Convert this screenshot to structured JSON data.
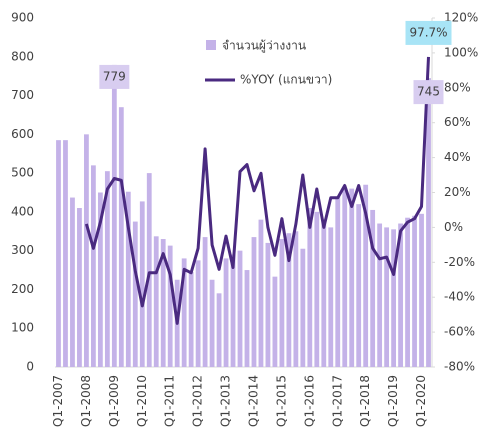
{
  "chart_data": {
    "type": "bar-line",
    "categories": [
      "Q1-2007",
      null,
      null,
      null,
      "Q1-2008",
      null,
      null,
      null,
      "Q1-2009",
      null,
      null,
      null,
      "Q1-2010",
      null,
      null,
      null,
      "Q1-2011",
      null,
      null,
      null,
      "Q1-2012",
      null,
      null,
      null,
      "Q1-2013",
      null,
      null,
      null,
      "Q1-2014",
      null,
      null,
      null,
      "Q1-2015",
      null,
      null,
      null,
      "Q1-2016",
      null,
      null,
      null,
      "Q1-2017",
      null,
      null,
      null,
      "Q1-2018",
      null,
      null,
      null,
      "Q1-2019",
      null,
      null,
      null,
      "Q1-2020",
      null
    ],
    "series": [
      {
        "name": "จำนวนผู้ว่างงาน",
        "type": "bar",
        "color": "#c4b2e8",
        "values": [
          585,
          585,
          437,
          410,
          600,
          520,
          450,
          505,
          779,
          670,
          452,
          375,
          427,
          500,
          337,
          330,
          313,
          225,
          280,
          245,
          275,
          335,
          225,
          190,
          280,
          290,
          300,
          250,
          335,
          380,
          320,
          233,
          330,
          345,
          350,
          305,
          410,
          400,
          380,
          360,
          440,
          460,
          460,
          420,
          470,
          405,
          370,
          360,
          355,
          370,
          385,
          390,
          395,
          745
        ],
        "value_labels": [
          null,
          null,
          null,
          null,
          null,
          null,
          null,
          null,
          "779",
          null,
          null,
          null,
          null,
          null,
          null,
          null,
          null,
          null,
          null,
          null,
          null,
          null,
          null,
          null,
          null,
          null,
          null,
          null,
          null,
          null,
          null,
          null,
          null,
          null,
          null,
          null,
          null,
          null,
          null,
          null,
          null,
          null,
          null,
          null,
          null,
          null,
          null,
          null,
          null,
          null,
          null,
          null,
          null,
          "745"
        ]
      },
      {
        "name": "%YOY (แกนขวา)",
        "type": "line",
        "axis": "y2",
        "color": "#4a2a80",
        "values": [
          null,
          null,
          null,
          null,
          2,
          -12,
          3,
          22,
          28,
          27,
          0,
          -25,
          -45,
          -26,
          -26,
          -15,
          -27,
          -55,
          -24,
          -26,
          -12,
          45,
          -10,
          -24,
          -5,
          -23,
          32,
          36,
          21,
          31,
          0,
          -16,
          5,
          -19,
          2,
          30,
          0,
          22,
          0,
          17,
          17,
          24,
          12,
          24,
          8,
          -12,
          -18,
          -17,
          -27,
          -2,
          3,
          5,
          12,
          97.7
        ],
        "value_labels": [
          null,
          null,
          null,
          null,
          null,
          null,
          null,
          null,
          null,
          null,
          null,
          null,
          null,
          null,
          null,
          null,
          null,
          null,
          null,
          null,
          null,
          null,
          null,
          null,
          null,
          null,
          null,
          null,
          null,
          null,
          null,
          null,
          null,
          null,
          null,
          null,
          null,
          null,
          null,
          null,
          null,
          null,
          null,
          null,
          null,
          null,
          null,
          null,
          null,
          null,
          null,
          null,
          null,
          "97.7%"
        ]
      }
    ],
    "ylim": [
      0,
      900
    ],
    "yticks": [
      0,
      100,
      200,
      300,
      400,
      500,
      600,
      700,
      800,
      900
    ],
    "y2lim": [
      -80,
      120
    ],
    "y2ticks": [
      {
        "value": -80,
        "label": "-80%"
      },
      {
        "value": -60,
        "label": "-60%"
      },
      {
        "value": -40,
        "label": "-40%"
      },
      {
        "value": -20,
        "label": "-20%"
      },
      {
        "value": 0,
        "label": "0%"
      },
      {
        "value": 20,
        "label": "20%"
      },
      {
        "value": 40,
        "label": "40%"
      },
      {
        "value": 60,
        "label": "60%"
      },
      {
        "value": 80,
        "label": "80%"
      },
      {
        "value": 100,
        "label": "100%"
      },
      {
        "value": 120,
        "label": "120%"
      }
    ],
    "legend": "top-center"
  }
}
